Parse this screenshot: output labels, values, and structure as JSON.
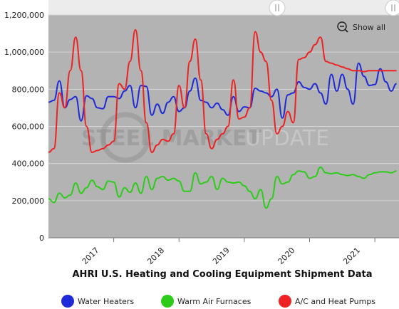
{
  "watermark": {
    "part1": "STEEL MARKET",
    "part2": "UPDATE"
  },
  "controls": {
    "show_all_label": "Show all"
  },
  "chart_data": {
    "type": "line",
    "title": "AHRI U.S. Heating and Cooling Equipment Shipment Data",
    "xlabel": "",
    "ylabel": "",
    "ylim": [
      0,
      1200000
    ],
    "yticks": [
      0,
      200000,
      400000,
      600000,
      800000,
      1000000,
      1200000
    ],
    "ytick_labels": [
      "0",
      "200,000",
      "400,000",
      "600,000",
      "800,000",
      "1,000,000",
      "1,200,000"
    ],
    "xlim": [
      2016.0,
      2021.37
    ],
    "xticks": [
      2017,
      2018,
      2019,
      2020,
      2021
    ],
    "xtick_labels": [
      "2017",
      "2018",
      "2019",
      "2020",
      "2021"
    ],
    "grid": true,
    "legend_position": "bottom",
    "series": [
      {
        "name": "Water Heaters",
        "color": "#1f2bd8",
        "x": [
          2016.0,
          2016.083,
          2016.167,
          2016.25,
          2016.333,
          2016.417,
          2016.5,
          2016.583,
          2016.667,
          2016.75,
          2016.833,
          2016.917,
          2017.0,
          2017.083,
          2017.167,
          2017.25,
          2017.333,
          2017.417,
          2017.5,
          2017.583,
          2017.667,
          2017.75,
          2017.833,
          2017.917,
          2018.0,
          2018.083,
          2018.167,
          2018.25,
          2018.333,
          2018.417,
          2018.5,
          2018.583,
          2018.667,
          2018.75,
          2018.833,
          2018.917,
          2019.0,
          2019.083,
          2019.167,
          2019.25,
          2019.333,
          2019.417,
          2019.5,
          2019.583,
          2019.667,
          2019.75,
          2019.833,
          2019.917,
          2020.0,
          2020.083,
          2020.167,
          2020.25,
          2020.333,
          2020.417,
          2020.5,
          2020.583,
          2020.667,
          2020.75,
          2020.833,
          2020.917,
          2021.0,
          2021.083,
          2021.167,
          2021.25,
          2021.333
        ],
        "y": [
          730000,
          740000,
          845000,
          700000,
          745000,
          760000,
          630000,
          765000,
          750000,
          700000,
          695000,
          760000,
          760000,
          750000,
          790000,
          820000,
          700000,
          820000,
          815000,
          660000,
          720000,
          670000,
          730000,
          760000,
          680000,
          700000,
          790000,
          860000,
          740000,
          730000,
          700000,
          725000,
          690000,
          660000,
          760000,
          680000,
          705000,
          700000,
          805000,
          790000,
          780000,
          760000,
          800000,
          645000,
          770000,
          780000,
          840000,
          810000,
          800000,
          830000,
          780000,
          720000,
          880000,
          790000,
          880000,
          800000,
          720000,
          940000,
          870000,
          820000,
          825000,
          910000,
          840000,
          790000,
          830000
        ]
      },
      {
        "name": "Warm Air Furnaces",
        "color": "#2ecc1a",
        "x": [
          2016.0,
          2016.083,
          2016.167,
          2016.25,
          2016.333,
          2016.417,
          2016.5,
          2016.583,
          2016.667,
          2016.75,
          2016.833,
          2016.917,
          2017.0,
          2017.083,
          2017.167,
          2017.25,
          2017.333,
          2017.417,
          2017.5,
          2017.583,
          2017.667,
          2017.75,
          2017.833,
          2017.917,
          2018.0,
          2018.083,
          2018.167,
          2018.25,
          2018.333,
          2018.417,
          2018.5,
          2018.583,
          2018.667,
          2018.75,
          2018.833,
          2018.917,
          2019.0,
          2019.083,
          2019.167,
          2019.25,
          2019.333,
          2019.417,
          2019.5,
          2019.583,
          2019.667,
          2019.75,
          2019.833,
          2019.917,
          2020.0,
          2020.083,
          2020.167,
          2020.25,
          2020.333,
          2020.417,
          2020.5,
          2020.583,
          2020.667,
          2020.75,
          2020.833,
          2020.917,
          2021.0,
          2021.083,
          2021.167,
          2021.25,
          2021.333
        ],
        "y": [
          210000,
          190000,
          240000,
          215000,
          230000,
          295000,
          240000,
          270000,
          310000,
          275000,
          260000,
          305000,
          300000,
          220000,
          270000,
          245000,
          295000,
          240000,
          330000,
          260000,
          320000,
          330000,
          310000,
          320000,
          305000,
          250000,
          250000,
          350000,
          290000,
          300000,
          330000,
          260000,
          320000,
          300000,
          295000,
          300000,
          280000,
          250000,
          210000,
          260000,
          160000,
          210000,
          330000,
          290000,
          300000,
          340000,
          360000,
          355000,
          320000,
          330000,
          380000,
          350000,
          345000,
          350000,
          340000,
          335000,
          340000,
          330000,
          320000,
          340000,
          350000,
          355000,
          355000,
          350000,
          360000
        ]
      },
      {
        "name": "A/C and Heat Pumps",
        "color": "#ee2222",
        "x": [
          2016.0,
          2016.083,
          2016.167,
          2016.25,
          2016.333,
          2016.417,
          2016.5,
          2016.583,
          2016.667,
          2016.75,
          2016.833,
          2016.917,
          2017.0,
          2017.083,
          2017.167,
          2017.25,
          2017.333,
          2017.417,
          2017.5,
          2017.583,
          2017.667,
          2017.75,
          2017.833,
          2017.917,
          2018.0,
          2018.083,
          2018.167,
          2018.25,
          2018.333,
          2018.417,
          2018.5,
          2018.583,
          2018.667,
          2018.75,
          2018.833,
          2018.917,
          2019.0,
          2019.083,
          2019.167,
          2019.25,
          2019.333,
          2019.417,
          2019.5,
          2019.583,
          2019.667,
          2019.75,
          2019.833,
          2019.917,
          2020.0,
          2020.083,
          2020.167,
          2020.25,
          2020.333,
          2020.417,
          2020.5,
          2020.583,
          2020.667,
          2020.75,
          2020.833,
          2020.917,
          2021.0,
          2021.083,
          2021.167,
          2021.25,
          2021.333
        ],
        "y": [
          460000,
          480000,
          780000,
          700000,
          900000,
          1080000,
          900000,
          600000,
          460000,
          470000,
          480000,
          500000,
          520000,
          830000,
          800000,
          950000,
          1120000,
          900000,
          620000,
          460000,
          500000,
          530000,
          520000,
          560000,
          820000,
          700000,
          950000,
          1070000,
          850000,
          560000,
          480000,
          530000,
          560000,
          600000,
          850000,
          640000,
          650000,
          700000,
          1110000,
          1000000,
          950000,
          740000,
          560000,
          600000,
          680000,
          620000,
          960000,
          970000,
          1000000,
          1040000,
          1080000,
          950000,
          940000,
          930000,
          920000,
          910000,
          900000,
          900000,
          895000,
          900000,
          900000,
          900000,
          900000,
          900000,
          900000
        ]
      }
    ]
  }
}
